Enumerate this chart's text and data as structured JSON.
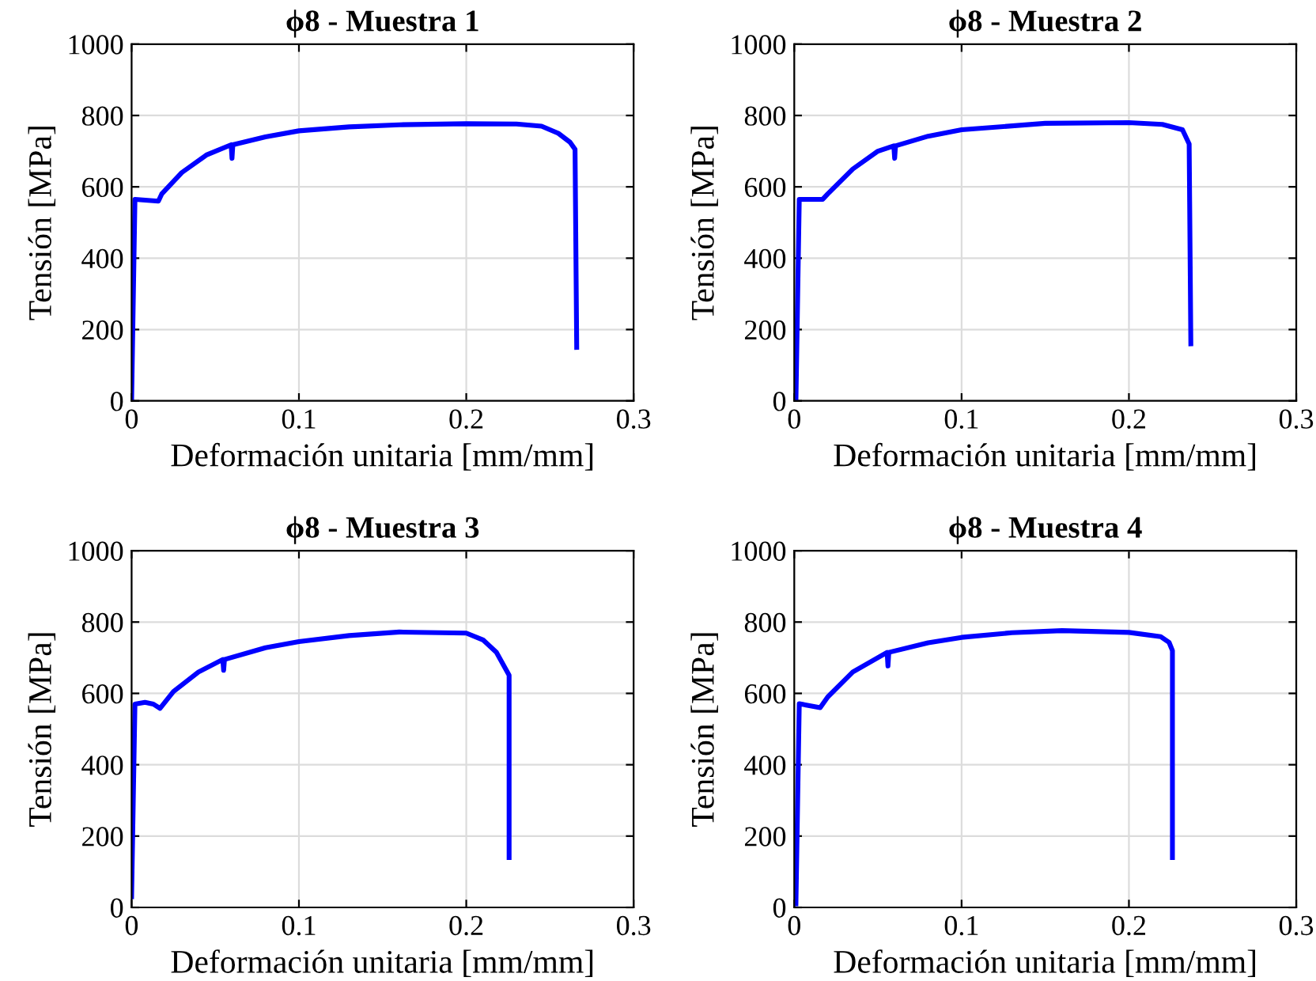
{
  "chart_data": [
    {
      "type": "line",
      "title": "ϕ8 - Muestra 1",
      "xlabel": "Deformación unitaria [mm/mm]",
      "ylabel": "Tensión [MPa]",
      "xlim": [
        0,
        0.3
      ],
      "ylim": [
        0,
        1000
      ],
      "xticks": [
        0,
        0.1,
        0.2,
        0.3
      ],
      "yticks": [
        0,
        200,
        400,
        600,
        800,
        1000
      ],
      "grid": true,
      "line_style": "solid",
      "marker": "none",
      "series": [
        {
          "color": "#0000ff",
          "x": [
            0,
            0.002,
            0.016,
            0.018,
            0.03,
            0.045,
            0.0595,
            0.06,
            0.0605,
            0.08,
            0.1,
            0.13,
            0.16,
            0.2,
            0.23,
            0.245,
            0.255,
            0.262,
            0.265,
            0.266
          ],
          "values": [
            0,
            565,
            560,
            580,
            640,
            690,
            718,
            680,
            718,
            740,
            757,
            768,
            774,
            777,
            776,
            770,
            750,
            725,
            705,
            150
          ]
        }
      ]
    },
    {
      "type": "line",
      "title": "ϕ8 - Muestra 2",
      "xlabel": "Deformación unitaria [mm/mm]",
      "ylabel": "Tensión [MPa]",
      "xlim": [
        0,
        0.3
      ],
      "ylim": [
        0,
        1000
      ],
      "xticks": [
        0,
        0.1,
        0.2,
        0.3
      ],
      "yticks": [
        0,
        200,
        400,
        600,
        800,
        1000
      ],
      "grid": true,
      "line_style": "solid",
      "marker": "none",
      "series": [
        {
          "color": "#0000ff",
          "x": [
            0.001,
            0.003,
            0.017,
            0.02,
            0.035,
            0.05,
            0.0595,
            0.06,
            0.0605,
            0.08,
            0.1,
            0.15,
            0.2,
            0.22,
            0.232,
            0.236,
            0.237
          ],
          "values": [
            0,
            565,
            565,
            580,
            650,
            700,
            715,
            680,
            715,
            742,
            760,
            778,
            780,
            775,
            760,
            720,
            160
          ]
        }
      ]
    },
    {
      "type": "line",
      "title": "ϕ8 - Muestra 3",
      "xlabel": "Deformación unitaria [mm/mm]",
      "ylabel": "Tensión [MPa]",
      "xlim": [
        0,
        0.3
      ],
      "ylim": [
        0,
        1000
      ],
      "xticks": [
        0,
        0.1,
        0.2,
        0.3
      ],
      "yticks": [
        0,
        200,
        400,
        600,
        800,
        1000
      ],
      "grid": true,
      "line_style": "solid",
      "marker": "none",
      "series": [
        {
          "color": "#0000ff",
          "x": [
            0,
            0.002,
            0.008,
            0.013,
            0.017,
            0.025,
            0.04,
            0.0545,
            0.055,
            0.0555,
            0.08,
            0.1,
            0.13,
            0.16,
            0.2,
            0.21,
            0.218,
            0.2256,
            0.2256
          ],
          "values": [
            30,
            570,
            575,
            570,
            558,
            605,
            660,
            695,
            665,
            695,
            728,
            745,
            762,
            772,
            769,
            750,
            715,
            651,
            140
          ]
        }
      ]
    },
    {
      "type": "line",
      "title": "ϕ8 - Muestra 4",
      "xlabel": "Deformación unitaria [mm/mm]",
      "ylabel": "Tensión [MPa]",
      "xlim": [
        0,
        0.3
      ],
      "ylim": [
        0,
        1000
      ],
      "xticks": [
        0,
        0.1,
        0.2,
        0.3
      ],
      "yticks": [
        0,
        200,
        400,
        600,
        800,
        1000
      ],
      "grid": true,
      "line_style": "solid",
      "marker": "none",
      "series": [
        {
          "color": "#0000ff",
          "x": [
            0.001,
            0.003,
            0.0155,
            0.02,
            0.035,
            0.0555,
            0.056,
            0.0565,
            0.08,
            0.1,
            0.13,
            0.16,
            0.2,
            0.219,
            0.224,
            0.226,
            0.226
          ],
          "values": [
            10,
            571,
            560,
            590,
            660,
            715,
            677,
            715,
            742,
            757,
            770,
            776,
            771,
            759,
            743,
            720,
            140
          ]
        }
      ]
    }
  ]
}
